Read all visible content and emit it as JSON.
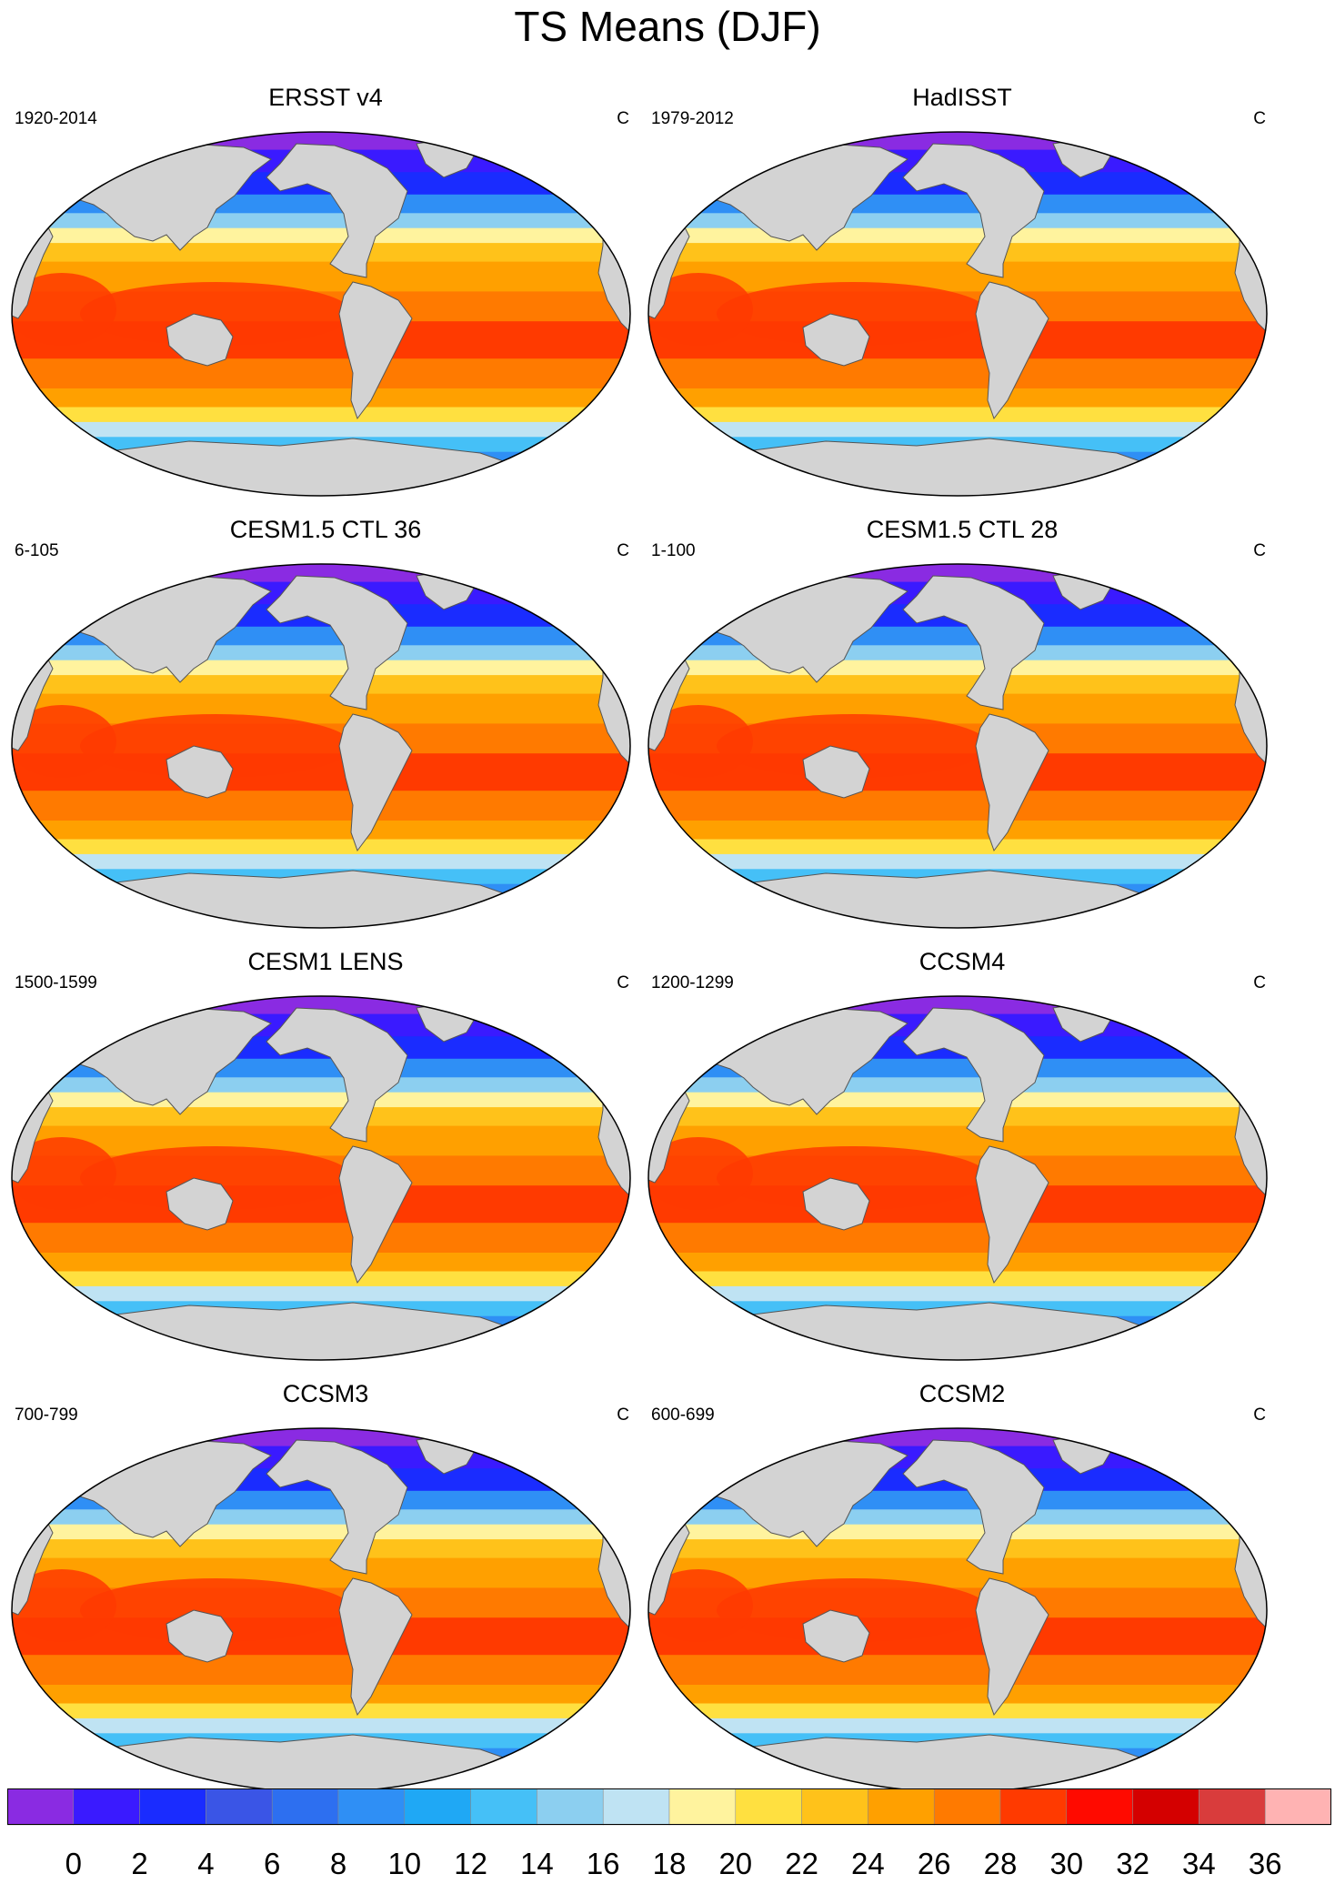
{
  "title": "TS Means (DJF)",
  "panels": [
    {
      "title": "ERSST v4",
      "years": "1920-2014",
      "unit": "C"
    },
    {
      "title": "HadISST",
      "years": "1979-2012",
      "unit": "C"
    },
    {
      "title": "CESM1.5 CTL 36",
      "years": "6-105",
      "unit": "C"
    },
    {
      "title": "CESM1.5 CTL 28",
      "years": "1-100",
      "unit": "C"
    },
    {
      "title": "CESM1 LENS",
      "years": "1500-1599",
      "unit": "C"
    },
    {
      "title": "CCSM4",
      "years": "1200-1299",
      "unit": "C"
    },
    {
      "title": "CCSM3",
      "years": "700-799",
      "unit": "C"
    },
    {
      "title": "CCSM2",
      "years": "600-699",
      "unit": "C"
    }
  ],
  "colorbar": {
    "labels": [
      "0",
      "2",
      "4",
      "6",
      "8",
      "10",
      "12",
      "14",
      "16",
      "18",
      "20",
      "22",
      "24",
      "26",
      "28",
      "30",
      "32",
      "34",
      "36"
    ],
    "colors": [
      "#8a2be2",
      "#3a1aff",
      "#1a2cff",
      "#3a55e6",
      "#2d6ff0",
      "#2f8ff5",
      "#1fa8f5",
      "#45c0f7",
      "#8ccff0",
      "#bfe3f3",
      "#fff39e",
      "#ffe040",
      "#ffc21a",
      "#ffa000",
      "#ff7a00",
      "#ff3a00",
      "#ff0a00",
      "#d40000",
      "#d93c3c",
      "#ffb3b3"
    ]
  }
}
